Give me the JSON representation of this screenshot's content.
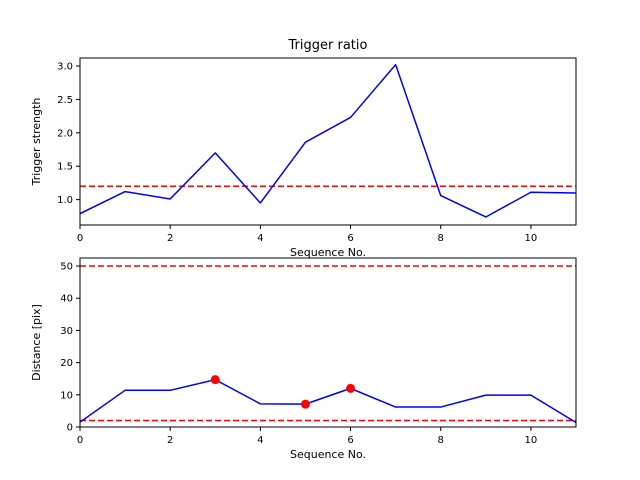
{
  "chart_data": [
    {
      "type": "line",
      "title": "Trigger ratio",
      "xlabel": "Sequence No.",
      "ylabel": "Trigger strength",
      "xlim": [
        0,
        11
      ],
      "ylim": [
        0.62,
        3.12
      ],
      "xticks": [
        0,
        2,
        4,
        6,
        8,
        10
      ],
      "yticks": [
        1.0,
        1.5,
        2.0,
        2.5,
        3.0
      ],
      "ytick_labels": [
        "1.0",
        "1.5",
        "2.0",
        "2.5",
        "3.0"
      ],
      "grid": false,
      "series": [
        {
          "color": "#0000ff",
          "x": [
            0,
            1,
            2,
            3,
            4,
            5,
            6,
            7,
            8,
            9,
            10,
            11
          ],
          "y": [
            0.79,
            1.12,
            1.01,
            1.7,
            0.95,
            1.86,
            2.23,
            3.02,
            1.06,
            0.74,
            1.11,
            1.1
          ]
        }
      ],
      "hlines": [
        {
          "y": 1.2,
          "color": "#ff0000",
          "style": "dashed"
        }
      ]
    },
    {
      "type": "line",
      "title": "",
      "xlabel": "Sequence No.",
      "ylabel": "Distance [pix]",
      "xlim": [
        0,
        11
      ],
      "ylim": [
        0,
        52.5
      ],
      "xticks": [
        0,
        2,
        4,
        6,
        8,
        10
      ],
      "yticks": [
        0,
        10,
        20,
        30,
        40,
        50
      ],
      "ytick_labels": [
        "0",
        "10",
        "20",
        "30",
        "40",
        "50"
      ],
      "grid": false,
      "series": [
        {
          "color": "#0000ff",
          "x": [
            0,
            1,
            2,
            3,
            4,
            5,
            6,
            7,
            8,
            9,
            10,
            11
          ],
          "y": [
            1.5,
            11.4,
            11.4,
            14.7,
            7.2,
            7.1,
            12.0,
            6.2,
            6.2,
            9.9,
            9.9,
            1.4
          ]
        }
      ],
      "markers": [
        {
          "x": 3,
          "y": 14.7,
          "color": "#ff0000"
        },
        {
          "x": 5,
          "y": 7.1,
          "color": "#ff0000"
        },
        {
          "x": 6,
          "y": 12.0,
          "color": "#ff0000"
        }
      ],
      "hlines": [
        {
          "y": 50,
          "color": "#ff0000",
          "style": "dashed"
        },
        {
          "y": 2,
          "color": "#ff0000",
          "style": "dashed"
        }
      ]
    }
  ]
}
